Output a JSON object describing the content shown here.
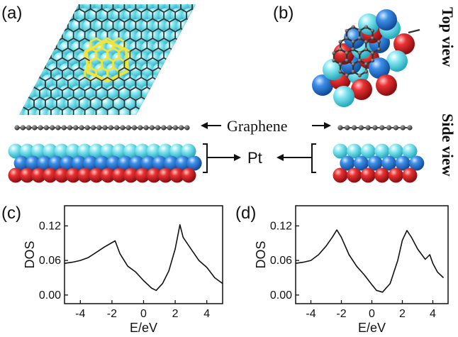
{
  "panel_labels": {
    "a": "(a)",
    "b": "(b)",
    "c": "(c)",
    "d": "(d)"
  },
  "view_labels": {
    "top": "Top view",
    "side": "Side view"
  },
  "annotations": {
    "graphene": "Graphene",
    "pt": "Pt"
  },
  "colors": {
    "pt_top_layer": "#5fd8e6",
    "pt_middle_layer": "#2a74d6",
    "pt_bottom_layer": "#e0262a",
    "graphene_carbon": "#4a4a4a",
    "graphene_highlight": "#f2e43a"
  },
  "chart_data": [
    {
      "panel": "(c)",
      "type": "line",
      "xlabel": "E/eV",
      "ylabel": "DOS",
      "xlim": [
        -5,
        5
      ],
      "ylim": [
        -0.015,
        0.155
      ],
      "xticks": [
        -4,
        -2,
        0,
        2,
        4
      ],
      "yticks": [
        0.0,
        0.06,
        0.12
      ],
      "ytick_labels": [
        "0.00",
        "0.06",
        "0.12"
      ],
      "series": [
        {
          "x": [
            -5.0,
            -4.5,
            -4.0,
            -3.5,
            -3.0,
            -2.5,
            -2.0,
            -1.8,
            -1.5,
            -1.0,
            -0.5,
            0.0,
            0.5,
            0.8,
            1.2,
            1.6,
            2.0,
            2.3,
            2.5,
            3.0,
            3.5,
            4.0,
            4.5,
            5.0
          ],
          "y": [
            0.055,
            0.057,
            0.06,
            0.065,
            0.074,
            0.083,
            0.091,
            0.094,
            0.072,
            0.05,
            0.04,
            0.025,
            0.012,
            0.008,
            0.02,
            0.042,
            0.08,
            0.122,
            0.1,
            0.08,
            0.06,
            0.048,
            0.03,
            0.02
          ]
        }
      ]
    },
    {
      "panel": "(d)",
      "type": "line",
      "xlabel": "E/eV",
      "ylabel": "DOS",
      "xlim": [
        -5,
        5
      ],
      "ylim": [
        -0.015,
        0.155
      ],
      "xticks": [
        -4,
        -2,
        0,
        2,
        4
      ],
      "yticks": [
        0.0,
        0.06,
        0.12
      ],
      "ytick_labels": [
        "0.00",
        "0.06",
        "0.12"
      ],
      "series": [
        {
          "x": [
            -5.0,
            -4.5,
            -4.0,
            -3.5,
            -3.0,
            -2.6,
            -2.3,
            -2.0,
            -1.5,
            -1.0,
            -0.5,
            0.0,
            0.3,
            0.7,
            1.2,
            1.7,
            2.0,
            2.3,
            2.6,
            3.0,
            3.5,
            3.8,
            4.0,
            4.3,
            4.7
          ],
          "y": [
            0.055,
            0.057,
            0.06,
            0.07,
            0.085,
            0.1,
            0.113,
            0.1,
            0.07,
            0.05,
            0.035,
            0.018,
            0.008,
            0.005,
            0.02,
            0.06,
            0.095,
            0.112,
            0.1,
            0.08,
            0.062,
            0.07,
            0.055,
            0.04,
            0.03
          ]
        }
      ]
    }
  ]
}
